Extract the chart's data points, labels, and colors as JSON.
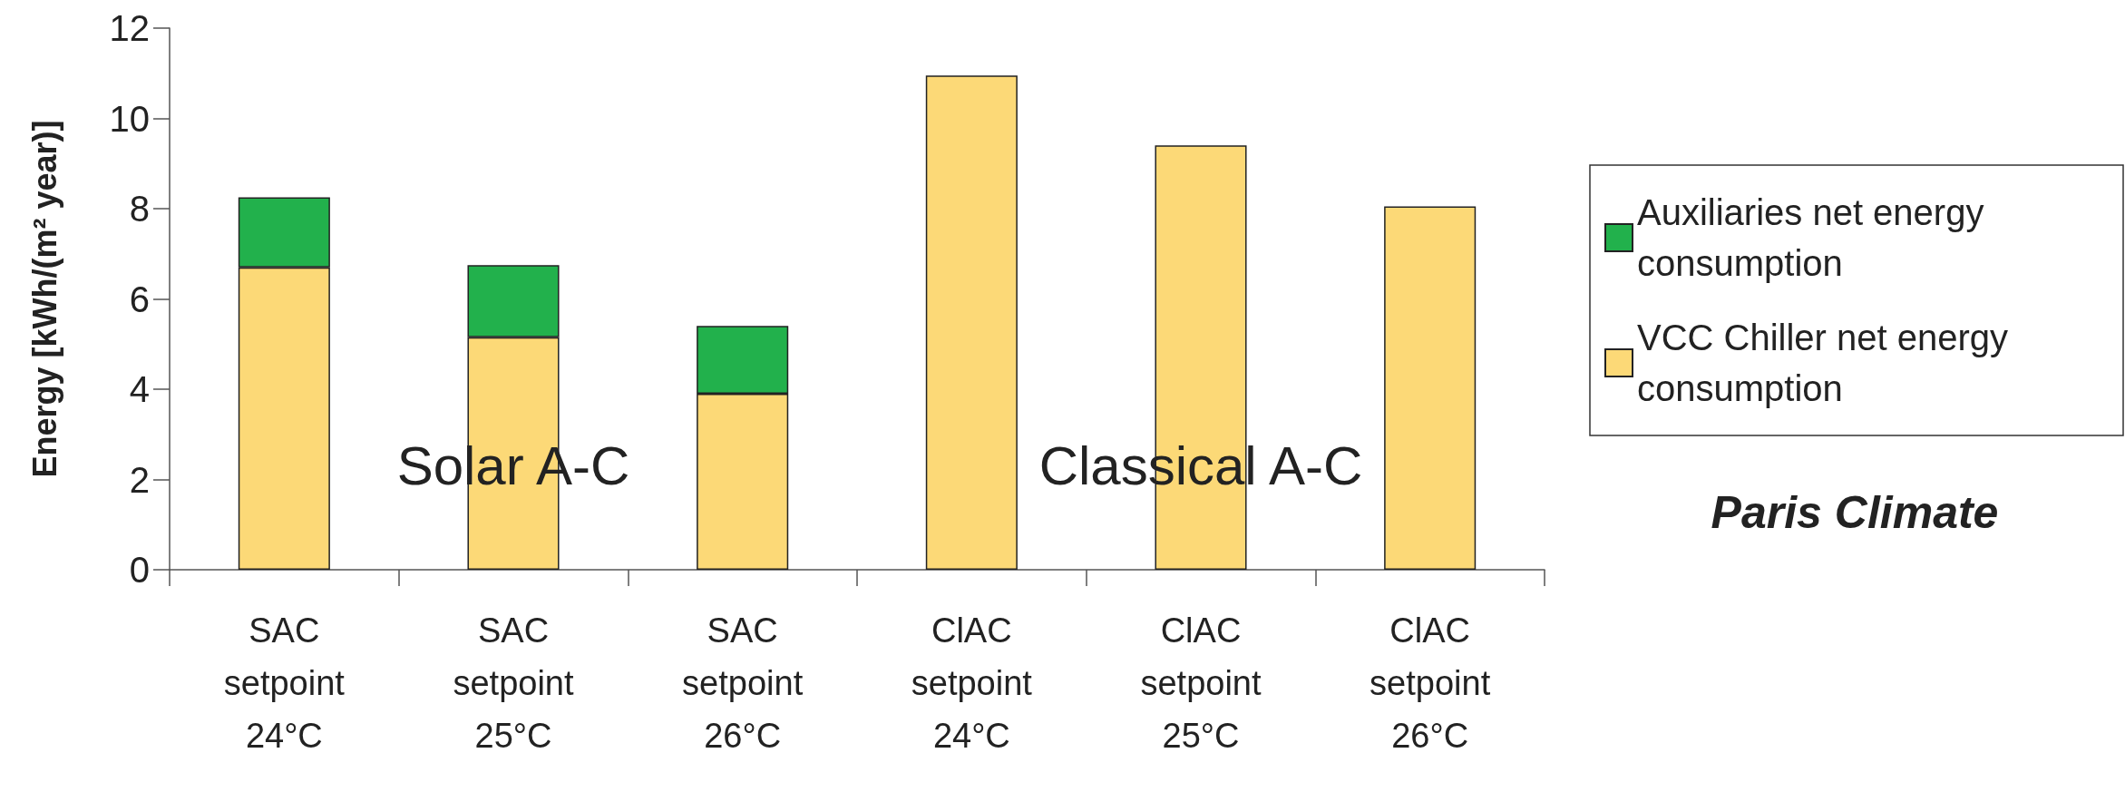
{
  "chart_data": {
    "type": "bar",
    "stacked": true,
    "ylabel": "Energy [kWh/(m² year)]",
    "categories": [
      "SAC\nsetpoint\n24°C",
      "SAC\nsetpoint\n25°C",
      "SAC\nsetpoint\n26°C",
      "ClAC\nsetpoint\n24°C",
      "ClAC\nsetpoint\n25°C",
      "ClAC\nsetpoint\n26°C"
    ],
    "series": [
      {
        "name": "VCC Chiller net energy consumption",
        "color": "#fcd977",
        "values": [
          6.7,
          5.15,
          3.9,
          10.95,
          9.4,
          8.05
        ]
      },
      {
        "name": "Auxiliaries net energy consumption",
        "color": "#22b14c",
        "values": [
          1.55,
          1.6,
          1.5,
          null,
          null,
          null
        ]
      }
    ],
    "ylim": [
      0,
      12
    ],
    "yticks": [
      0,
      2,
      4,
      6,
      8,
      10,
      12
    ],
    "grid": false,
    "legend": "right",
    "annotations": [
      "Solar A-C",
      "Classical A-C",
      "Paris Climate"
    ]
  }
}
